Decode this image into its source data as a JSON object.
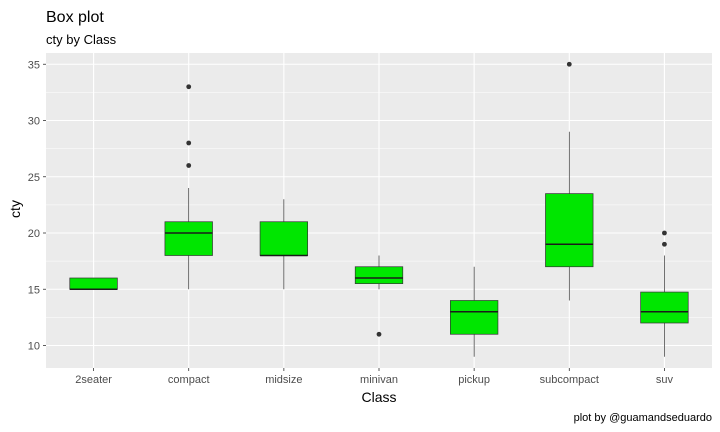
{
  "chart_data": {
    "type": "box",
    "title": "Box plot",
    "subtitle": "cty by Class",
    "xlabel": "Class",
    "ylabel": "cty",
    "caption": "plot by @guamandseduardo",
    "ylim": [
      8,
      36
    ],
    "yticks": [
      10,
      15,
      20,
      25,
      30,
      35
    ],
    "grid": true,
    "box_fill": "#00e600",
    "panel_bg": "#ebebeb",
    "categories": [
      "2seater",
      "compact",
      "midsize",
      "minivan",
      "pickup",
      "subcompact",
      "suv"
    ],
    "boxes": [
      {
        "category": "2seater",
        "lower_whisker": 15,
        "q1": 15,
        "median": 15,
        "q3": 16,
        "upper_whisker": 16,
        "outliers": []
      },
      {
        "category": "compact",
        "lower_whisker": 15,
        "q1": 18,
        "median": 20,
        "q3": 21,
        "upper_whisker": 24,
        "outliers": [
          26,
          28,
          33
        ]
      },
      {
        "category": "midsize",
        "lower_whisker": 15,
        "q1": 18,
        "median": 18,
        "q3": 21,
        "upper_whisker": 23,
        "outliers": []
      },
      {
        "category": "minivan",
        "lower_whisker": 15,
        "q1": 15.5,
        "median": 16,
        "q3": 17,
        "upper_whisker": 18,
        "outliers": [
          11
        ]
      },
      {
        "category": "pickup",
        "lower_whisker": 9,
        "q1": 11,
        "median": 13,
        "q3": 14,
        "upper_whisker": 17,
        "outliers": []
      },
      {
        "category": "subcompact",
        "lower_whisker": 14,
        "q1": 17,
        "median": 19,
        "q3": 23.5,
        "upper_whisker": 29,
        "outliers": [
          35
        ]
      },
      {
        "category": "suv",
        "lower_whisker": 9,
        "q1": 12,
        "median": 13,
        "q3": 14.75,
        "upper_whisker": 18,
        "outliers": [
          19,
          20
        ]
      }
    ]
  }
}
